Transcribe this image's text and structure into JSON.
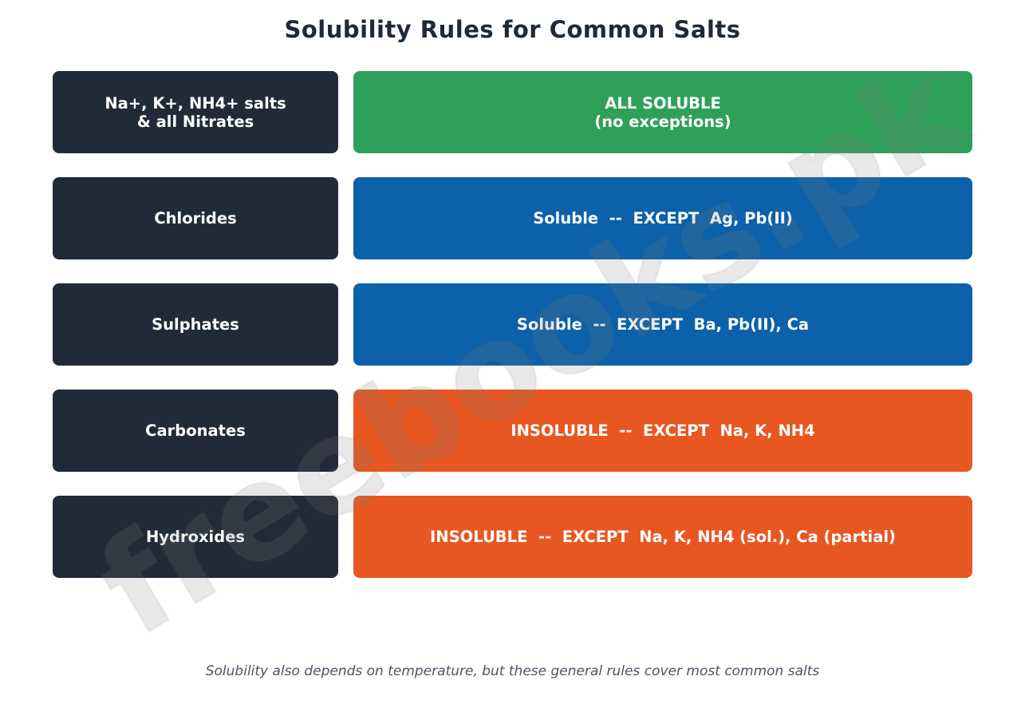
{
  "title": "Solubility Rules for Common Salts",
  "colors": {
    "label_bg": "#212a38",
    "all_soluble": "#2ea05a",
    "soluble_except": "#0c61a8",
    "insoluble_except": "#e85722",
    "title_text": "#1f2937",
    "footer_text": "#4b5563"
  },
  "rules": [
    {
      "label": "Na+, K+, NH4+ salts\n& all Nitrates",
      "rule": "ALL SOLUBLE\n(no exceptions)",
      "category": "all_soluble"
    },
    {
      "label": "Chlorides",
      "rule": "Soluble  --  EXCEPT  Ag, Pb(II)",
      "category": "soluble_except"
    },
    {
      "label": "Sulphates",
      "rule": "Soluble  --  EXCEPT  Ba, Pb(II), Ca",
      "category": "soluble_except"
    },
    {
      "label": "Carbonates",
      "rule": "INSOLUBLE  --  EXCEPT  Na, K, NH4",
      "category": "insoluble_except"
    },
    {
      "label": "Hydroxides",
      "rule": "INSOLUBLE  --  EXCEPT  Na, K, NH4 (sol.), Ca (partial)",
      "category": "insoluble_except"
    }
  ],
  "footer": "Solubility also depends on temperature, but these general rules cover most common salts",
  "watermark": "freebooks.pk"
}
